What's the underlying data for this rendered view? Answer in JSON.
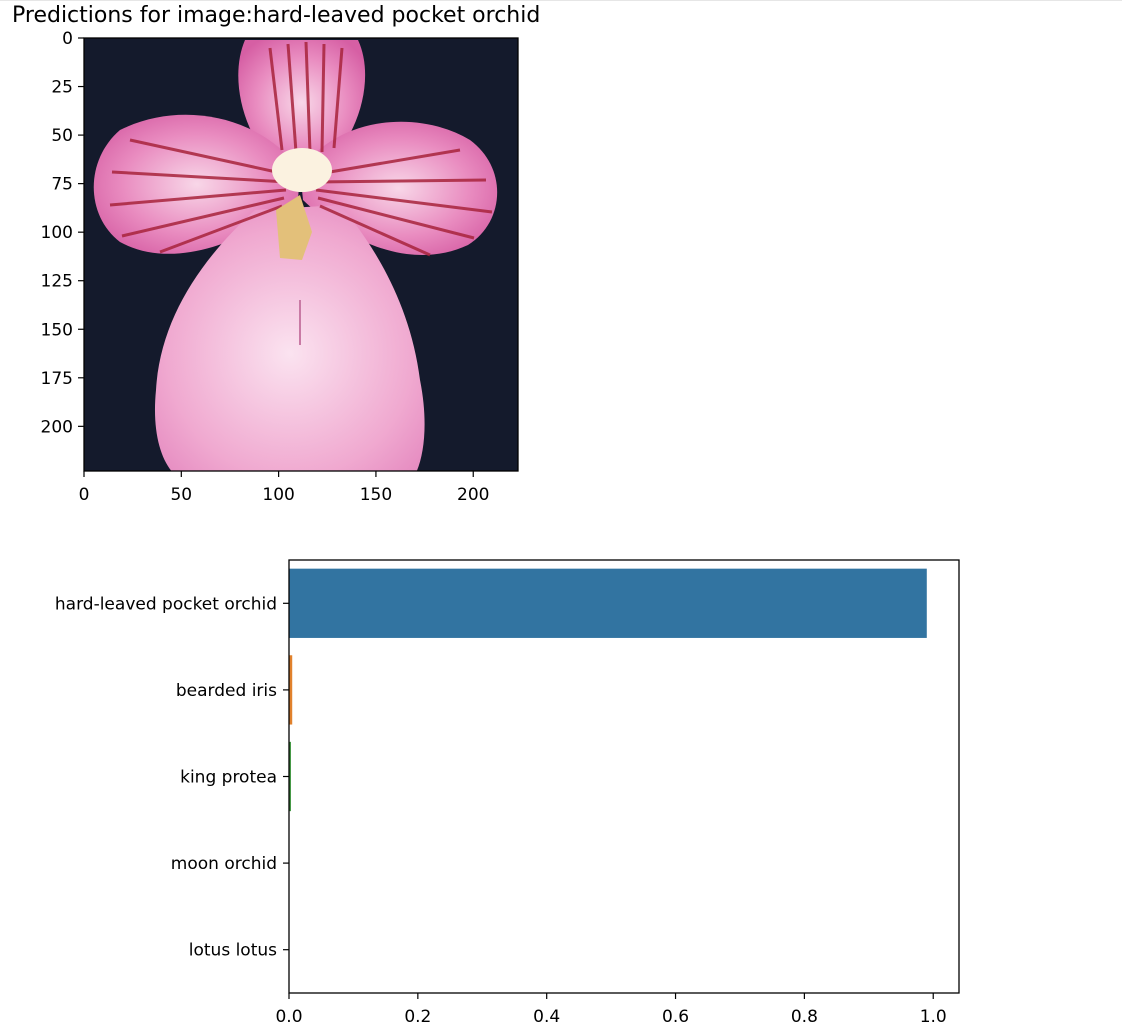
{
  "title": "Predictions for image:hard-leaved pocket orchid",
  "image_axes": {
    "y_ticks": [
      "0",
      "25",
      "50",
      "75",
      "100",
      "125",
      "150",
      "175",
      "200"
    ],
    "x_ticks": [
      "0",
      "50",
      "100",
      "150",
      "200"
    ],
    "xlim": [
      0,
      223
    ],
    "ylim": [
      223,
      0
    ]
  },
  "chart_data": {
    "type": "bar",
    "orientation": "horizontal",
    "categories": [
      "hard-leaved pocket orchid",
      "bearded iris",
      "king protea",
      "moon orchid",
      "lotus lotus"
    ],
    "values": [
      0.99,
      0.005,
      0.003,
      0.0005,
      0.0003
    ],
    "colors": [
      "#3274a1",
      "#e1812c",
      "#3a923a",
      "#c03d3e",
      "#9372b2"
    ],
    "xlim": [
      0,
      1.04
    ],
    "x_ticks": [
      "0.0",
      "0.2",
      "0.4",
      "0.6",
      "0.8",
      "1.0"
    ],
    "title": "",
    "xlabel": "",
    "ylabel": ""
  }
}
